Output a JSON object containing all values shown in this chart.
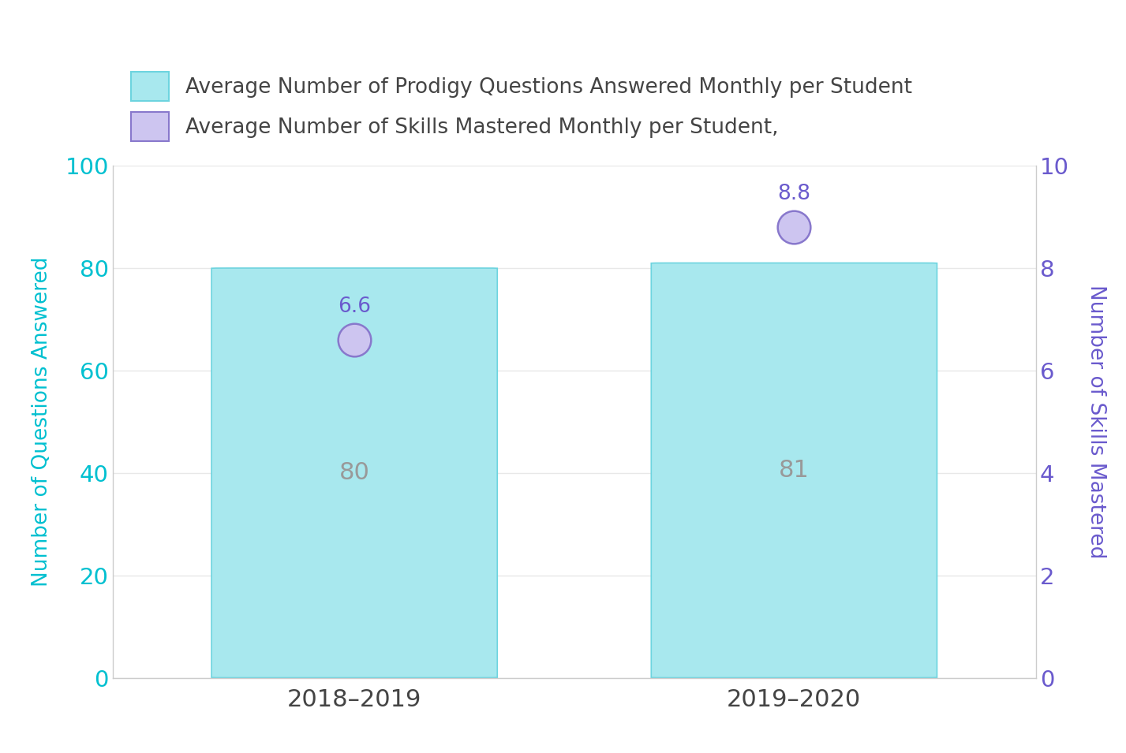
{
  "categories": [
    "2018–2019",
    "2019–2020"
  ],
  "bar_values": [
    80,
    81
  ],
  "circle_values": [
    6.6,
    8.8
  ],
  "bar_color": "#a8e8ee",
  "bar_edge_color": "#6dd4df",
  "circle_face_color": "#cdc5f0",
  "circle_edge_color": "#8878cc",
  "circle_label_color": "#6a5acd",
  "bar_label_color": "#999999",
  "left_axis_color": "#00c0d0",
  "right_axis_color": "#6a5acd",
  "left_ylabel": "Number of Questions Answered",
  "right_ylabel": "Number of Skills Mastered",
  "ylim_left": [
    0,
    100
  ],
  "ylim_right": [
    0,
    10
  ],
  "yticks_left": [
    0,
    20,
    40,
    60,
    80,
    100
  ],
  "yticks_right": [
    0,
    2,
    4,
    6,
    8,
    10
  ],
  "legend_bar_label": "Average Number of Prodigy Questions Answered Monthly per Student",
  "legend_circle_label": "Average Number of Skills Mastered Monthly per Student,",
  "background_color": "#ffffff",
  "grid_color": "#e8e8e8",
  "bar_width": 0.65,
  "bar_label_fontsize": 22,
  "circle_label_fontsize": 19,
  "tick_fontsize": 21,
  "ylabel_fontsize": 19,
  "legend_fontsize": 19,
  "xtick_fontsize": 22,
  "rounding_size": 0.04
}
